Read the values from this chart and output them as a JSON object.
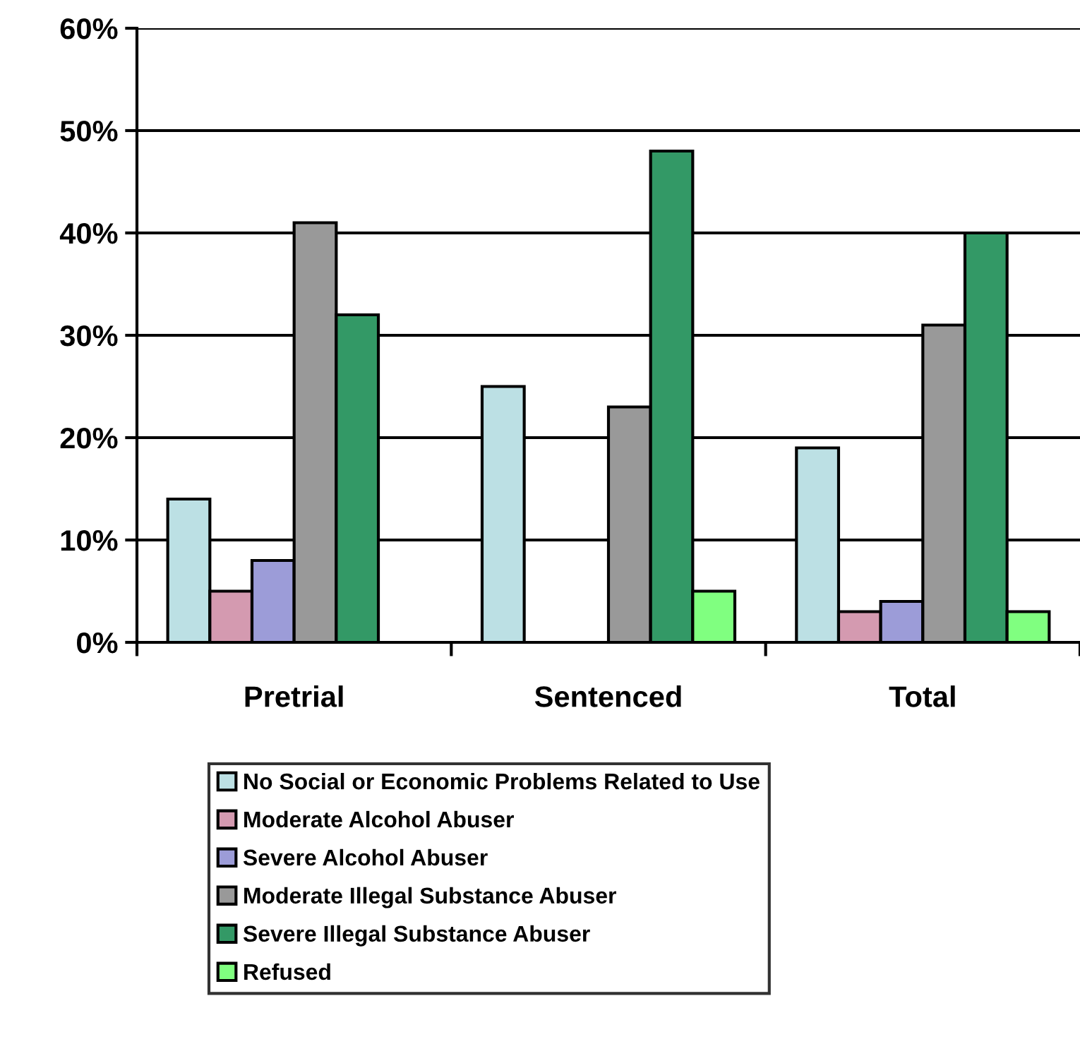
{
  "chart_data": {
    "type": "bar",
    "categories": [
      "Pretrial",
      "Sentenced",
      "Total"
    ],
    "series": [
      {
        "name": "No Social or Economic Problems Related to Use",
        "color": "#bce0e4",
        "values": [
          14,
          25,
          19
        ]
      },
      {
        "name": "Moderate Alcohol Abuser",
        "color": "#d49ab0",
        "values": [
          5,
          null,
          3
        ]
      },
      {
        "name": "Severe Alcohol Abuser",
        "color": "#9c9cd8",
        "values": [
          8,
          null,
          4
        ]
      },
      {
        "name": "Moderate Illegal Substance Abuser",
        "color": "#999999",
        "values": [
          41,
          23,
          31
        ]
      },
      {
        "name": "Severe Illegal Substance Abuser",
        "color": "#339966",
        "values": [
          32,
          48,
          40
        ]
      },
      {
        "name": "Refused",
        "color": "#80ff80",
        "values": [
          null,
          5,
          3
        ]
      }
    ],
    "ylim": [
      0,
      60
    ],
    "yticks": [
      {
        "value": 0,
        "label": "0%"
      },
      {
        "value": 10,
        "label": "10%"
      },
      {
        "value": 20,
        "label": "20%"
      },
      {
        "value": 30,
        "label": "30%"
      },
      {
        "value": 40,
        "label": "40%"
      },
      {
        "value": 50,
        "label": "50%"
      },
      {
        "value": 60,
        "label": "60%"
      }
    ],
    "grid": "y",
    "legend": "bottom"
  }
}
